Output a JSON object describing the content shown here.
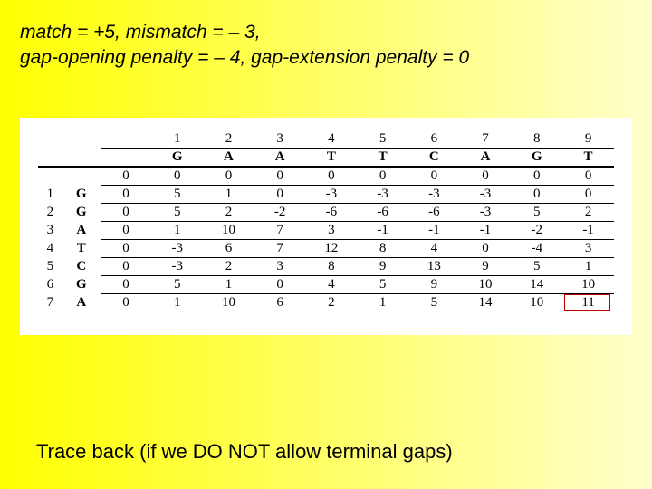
{
  "header": {
    "line1": "match = +5, mismatch = – 3,",
    "line2": "gap-opening penalty = – 4, gap-extension penalty = 0"
  },
  "table": {
    "type": "table",
    "col_index": [
      "1",
      "2",
      "3",
      "4",
      "5",
      "6",
      "7",
      "8",
      "9"
    ],
    "col_seq": [
      "G",
      "A",
      "A",
      "T",
      "T",
      "C",
      "A",
      "G",
      "T"
    ],
    "row_index": [
      "1",
      "2",
      "3",
      "4",
      "5",
      "6",
      "7"
    ],
    "row_seq": [
      "G",
      "G",
      "A",
      "T",
      "C",
      "G",
      "A"
    ],
    "init_row": [
      "0",
      "0",
      "0",
      "0",
      "0",
      "0",
      "0",
      "0",
      "0",
      "0"
    ],
    "rows": [
      [
        "0",
        "5",
        "1",
        "0",
        "-3",
        "-3",
        "-3",
        "-3",
        "0",
        "0"
      ],
      [
        "0",
        "5",
        "2",
        "-2",
        "-6",
        "-6",
        "-6",
        "-3",
        "5",
        "2"
      ],
      [
        "0",
        "1",
        "10",
        "7",
        "3",
        "-1",
        "-1",
        "-1",
        "-2",
        "-1"
      ],
      [
        "0",
        "-3",
        "6",
        "7",
        "12",
        "8",
        "4",
        "0",
        "-4",
        "3"
      ],
      [
        "0",
        "-3",
        "2",
        "3",
        "8",
        "9",
        "13",
        "9",
        "5",
        "1"
      ],
      [
        "0",
        "5",
        "1",
        "0",
        "4",
        "5",
        "9",
        "10",
        "14",
        "10"
      ],
      [
        "0",
        "1",
        "10",
        "6",
        "2",
        "1",
        "5",
        "14",
        "10",
        "11"
      ]
    ],
    "background_color": "#ffffff",
    "font_family": "Times New Roman",
    "font_size_pt": 11,
    "border_color": "#000000",
    "highlight": {
      "rowIndex": 7,
      "colIndex": 9,
      "border_color": "#c00000"
    }
  },
  "footer": {
    "text": "Trace back (if we DO NOT allow terminal gaps)"
  },
  "slide_bg": {
    "gradient_from": "#ffff00",
    "gradient_to": "#ffffcc"
  }
}
